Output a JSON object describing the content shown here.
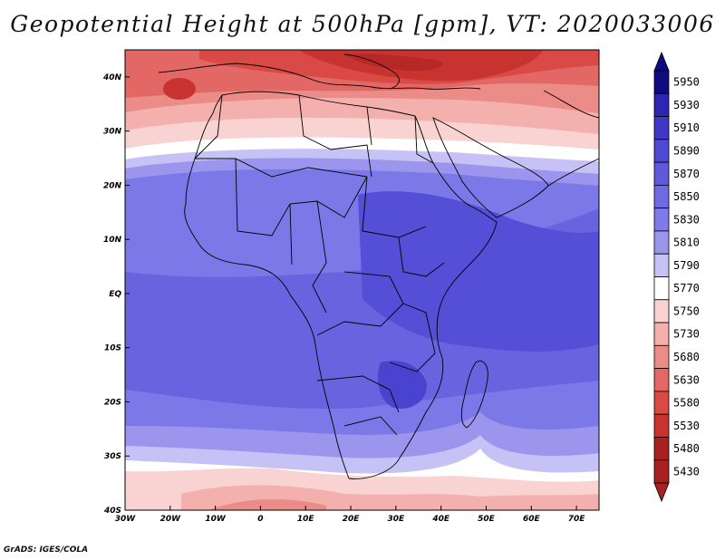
{
  "title": "Geopotential Height at 500hPa [gpm], VT: 2020033006",
  "credit": "GrADS: IGES/COLA",
  "map": {
    "lon_labels": [
      "30W",
      "20W",
      "10W",
      "0",
      "10E",
      "20E",
      "30E",
      "40E",
      "50E",
      "60E",
      "70E"
    ],
    "lat_labels": [
      "40N",
      "30N",
      "20N",
      "10N",
      "EQ",
      "10S",
      "20S",
      "30S",
      "40S"
    ],
    "lon_range": [
      -30,
      75
    ],
    "lat_range": [
      -40,
      45
    ]
  },
  "colorbar": {
    "levels": [
      "5950",
      "5930",
      "5910",
      "5890",
      "5870",
      "5850",
      "5830",
      "5810",
      "5790",
      "5770",
      "5750",
      "5730",
      "5680",
      "5630",
      "5580",
      "5530",
      "5480",
      "5430"
    ],
    "colors": [
      "#0f0c80",
      "#2e25b5",
      "#3f37c6",
      "#4f48d4",
      "#5f59de",
      "#6f6ae3",
      "#8079e8",
      "#9b95ee",
      "#c6c2f6",
      "#ffffff",
      "#f8d3d1",
      "#f3b0ad",
      "#ec8c88",
      "#e36865",
      "#d94a47",
      "#c83330",
      "#a82020",
      "#a82020"
    ]
  }
}
